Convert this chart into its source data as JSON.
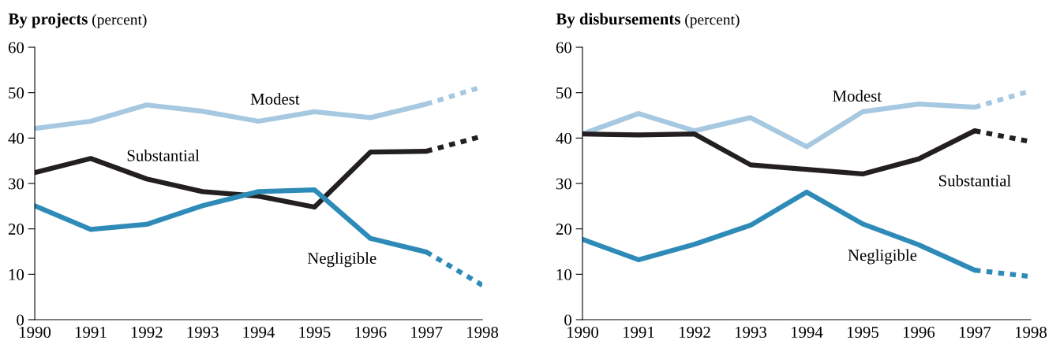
{
  "chart_data": [
    {
      "type": "line",
      "title": "By projects",
      "subtitle": "(percent)",
      "xlim": [
        1990,
        1998
      ],
      "xticks": [
        1990,
        1991,
        1992,
        1993,
        1994,
        1995,
        1996,
        1997,
        1998
      ],
      "ylim": [
        0,
        60
      ],
      "yticks": [
        0,
        10,
        20,
        30,
        40,
        50,
        60
      ],
      "grid": false,
      "marker": "none",
      "series": [
        {
          "name": "Modest",
          "color": "#a6c8e0",
          "line_style": "solid",
          "x": [
            1990,
            1991,
            1992,
            1993,
            1994,
            1995,
            1996,
            1997
          ],
          "values": [
            42.1,
            43.7,
            47.3,
            45.9,
            43.7,
            45.8,
            44.5,
            47.5
          ]
        },
        {
          "color": "#a6c8e0",
          "line_style": "dotted",
          "x": [
            1997,
            1998
          ],
          "values": [
            47.5,
            51.3
          ]
        },
        {
          "name": "Substantial",
          "color": "#231f20",
          "line_style": "solid",
          "x": [
            1990,
            1991,
            1992,
            1993,
            1994,
            1995,
            1996,
            1997
          ],
          "values": [
            32.4,
            35.5,
            31.0,
            28.2,
            27.2,
            24.8,
            36.9,
            37.1
          ]
        },
        {
          "color": "#231f20",
          "line_style": "dotted",
          "x": [
            1997,
            1998
          ],
          "values": [
            37.1,
            40.4
          ]
        },
        {
          "name": "Negligible",
          "color": "#2e8bb8",
          "line_style": "solid",
          "x": [
            1990,
            1991,
            1992,
            1993,
            1994,
            1995,
            1996,
            1997
          ],
          "values": [
            25.1,
            19.9,
            21.0,
            25.1,
            28.2,
            28.6,
            17.9,
            14.9
          ]
        },
        {
          "color": "#2e8bb8",
          "line_style": "dotted",
          "x": [
            1997,
            1998
          ],
          "values": [
            14.9,
            7.6
          ]
        }
      ]
    },
    {
      "type": "line",
      "title": "By disbursements",
      "subtitle": "(percent)",
      "xlim": [
        1990,
        1998
      ],
      "xticks": [
        1990,
        1991,
        1992,
        1993,
        1994,
        1995,
        1996,
        1997,
        1998
      ],
      "ylim": [
        0,
        60
      ],
      "yticks": [
        0,
        10,
        20,
        30,
        40,
        50,
        60
      ],
      "grid": false,
      "marker": "none",
      "series": [
        {
          "name": "Modest",
          "color": "#a6c8e0",
          "line_style": "solid",
          "x": [
            1990,
            1991,
            1992,
            1993,
            1994,
            1995,
            1996,
            1997
          ],
          "values": [
            40.9,
            45.4,
            41.6,
            44.5,
            38.1,
            45.8,
            47.5,
            46.8
          ]
        },
        {
          "color": "#a6c8e0",
          "line_style": "dotted",
          "x": [
            1997,
            1998
          ],
          "values": [
            46.8,
            50.4
          ]
        },
        {
          "name": "Substantial",
          "color": "#231f20",
          "line_style": "solid",
          "x": [
            1990,
            1991,
            1992,
            1993,
            1994,
            1995,
            1996,
            1997
          ],
          "values": [
            40.9,
            40.7,
            40.9,
            34.1,
            33.1,
            32.1,
            35.4,
            41.6
          ]
        },
        {
          "color": "#231f20",
          "line_style": "dotted",
          "x": [
            1997,
            1998
          ],
          "values": [
            41.6,
            39.2
          ]
        },
        {
          "name": "Negligible",
          "color": "#2e8bb8",
          "line_style": "solid",
          "x": [
            1990,
            1991,
            1992,
            1993,
            1994,
            1995,
            1996,
            1997
          ],
          "values": [
            17.7,
            13.2,
            16.6,
            20.8,
            28.1,
            21.1,
            16.5,
            10.9
          ]
        },
        {
          "color": "#2e8bb8",
          "line_style": "dotted",
          "x": [
            1997,
            1998
          ],
          "values": [
            10.9,
            9.5
          ]
        }
      ]
    }
  ]
}
